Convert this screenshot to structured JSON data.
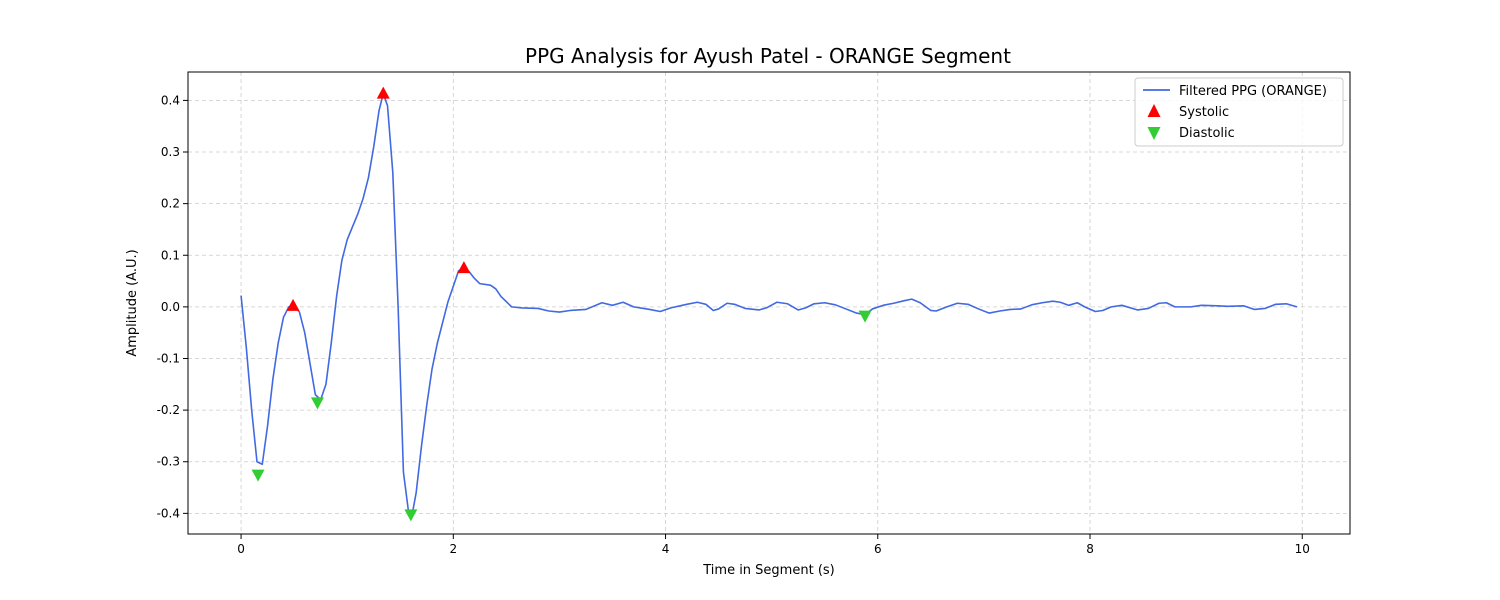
{
  "chart_data": {
    "type": "line",
    "title": "PPG Analysis for Ayush Patel - ORANGE Segment",
    "xlabel": "Time in Segment (s)",
    "ylabel": "Amplitude (A.U.)",
    "xlim": [
      -0.5,
      10.45
    ],
    "ylim": [
      -0.44,
      0.455
    ],
    "xticks": [
      0,
      2,
      4,
      6,
      8,
      10
    ],
    "yticks": [
      -0.4,
      -0.3,
      -0.2,
      -0.1,
      0.0,
      0.1,
      0.2,
      0.3,
      0.4
    ],
    "grid": true,
    "legend_position": "top-right",
    "colors": {
      "line": "#4169e1",
      "systolic": "#ff0000",
      "diastolic": "#32cd32",
      "grid": "#cccccc"
    },
    "series": [
      {
        "name": "Filtered PPG (ORANGE)",
        "kind": "line",
        "points": [
          [
            0.0,
            0.022
          ],
          [
            0.05,
            -0.08
          ],
          [
            0.1,
            -0.2
          ],
          [
            0.15,
            -0.3
          ],
          [
            0.2,
            -0.305
          ],
          [
            0.25,
            -0.23
          ],
          [
            0.3,
            -0.14
          ],
          [
            0.35,
            -0.07
          ],
          [
            0.4,
            -0.02
          ],
          [
            0.45,
            0.0
          ],
          [
            0.5,
            0.002
          ],
          [
            0.55,
            -0.01
          ],
          [
            0.6,
            -0.05
          ],
          [
            0.65,
            -0.11
          ],
          [
            0.7,
            -0.17
          ],
          [
            0.75,
            -0.18
          ],
          [
            0.8,
            -0.15
          ],
          [
            0.85,
            -0.07
          ],
          [
            0.9,
            0.02
          ],
          [
            0.95,
            0.09
          ],
          [
            1.0,
            0.13
          ],
          [
            1.05,
            0.155
          ],
          [
            1.1,
            0.18
          ],
          [
            1.15,
            0.21
          ],
          [
            1.2,
            0.25
          ],
          [
            1.25,
            0.31
          ],
          [
            1.3,
            0.38
          ],
          [
            1.34,
            0.413
          ],
          [
            1.38,
            0.39
          ],
          [
            1.43,
            0.26
          ],
          [
            1.48,
            0.0
          ],
          [
            1.53,
            -0.32
          ],
          [
            1.58,
            -0.4
          ],
          [
            1.61,
            -0.405
          ],
          [
            1.65,
            -0.36
          ],
          [
            1.7,
            -0.27
          ],
          [
            1.75,
            -0.19
          ],
          [
            1.8,
            -0.12
          ],
          [
            1.85,
            -0.07
          ],
          [
            1.9,
            -0.03
          ],
          [
            1.95,
            0.01
          ],
          [
            2.0,
            0.04
          ],
          [
            2.05,
            0.07
          ],
          [
            2.1,
            0.075
          ],
          [
            2.15,
            0.068
          ],
          [
            2.2,
            0.055
          ],
          [
            2.25,
            0.045
          ],
          [
            2.35,
            0.042
          ],
          [
            2.4,
            0.035
          ],
          [
            2.45,
            0.02
          ],
          [
            2.55,
            0.0
          ],
          [
            2.65,
            -0.002
          ],
          [
            2.8,
            -0.003
          ],
          [
            2.9,
            -0.008
          ],
          [
            3.0,
            -0.01
          ],
          [
            3.1,
            -0.007
          ],
          [
            3.25,
            -0.005
          ],
          [
            3.4,
            0.008
          ],
          [
            3.5,
            0.003
          ],
          [
            3.6,
            0.009
          ],
          [
            3.7,
            0.0
          ],
          [
            3.85,
            -0.005
          ],
          [
            3.95,
            -0.009
          ],
          [
            4.05,
            -0.002
          ],
          [
            4.2,
            0.005
          ],
          [
            4.3,
            0.009
          ],
          [
            4.38,
            0.005
          ],
          [
            4.45,
            -0.007
          ],
          [
            4.5,
            -0.004
          ],
          [
            4.58,
            0.007
          ],
          [
            4.65,
            0.005
          ],
          [
            4.75,
            -0.003
          ],
          [
            4.88,
            -0.006
          ],
          [
            4.95,
            -0.002
          ],
          [
            5.05,
            0.009
          ],
          [
            5.15,
            0.006
          ],
          [
            5.25,
            -0.006
          ],
          [
            5.32,
            -0.002
          ],
          [
            5.4,
            0.006
          ],
          [
            5.5,
            0.008
          ],
          [
            5.6,
            0.004
          ],
          [
            5.7,
            -0.004
          ],
          [
            5.8,
            -0.012
          ],
          [
            5.88,
            -0.015
          ],
          [
            5.95,
            -0.004
          ],
          [
            6.05,
            0.003
          ],
          [
            6.15,
            0.007
          ],
          [
            6.25,
            0.012
          ],
          [
            6.32,
            0.015
          ],
          [
            6.4,
            0.008
          ],
          [
            6.5,
            -0.007
          ],
          [
            6.55,
            -0.008
          ],
          [
            6.65,
            0.0
          ],
          [
            6.75,
            0.007
          ],
          [
            6.85,
            0.005
          ],
          [
            6.95,
            -0.004
          ],
          [
            7.05,
            -0.012
          ],
          [
            7.15,
            -0.008
          ],
          [
            7.25,
            -0.005
          ],
          [
            7.35,
            -0.004
          ],
          [
            7.45,
            0.004
          ],
          [
            7.55,
            0.008
          ],
          [
            7.65,
            0.011
          ],
          [
            7.72,
            0.009
          ],
          [
            7.8,
            0.003
          ],
          [
            7.88,
            0.008
          ],
          [
            7.95,
            0.0
          ],
          [
            8.05,
            -0.009
          ],
          [
            8.12,
            -0.007
          ],
          [
            8.2,
            0.0
          ],
          [
            8.3,
            0.003
          ],
          [
            8.45,
            -0.006
          ],
          [
            8.55,
            -0.003
          ],
          [
            8.65,
            0.007
          ],
          [
            8.72,
            0.008
          ],
          [
            8.8,
            0.0
          ],
          [
            8.95,
            0.0
          ],
          [
            9.05,
            0.003
          ],
          [
            9.2,
            0.002
          ],
          [
            9.3,
            0.001
          ],
          [
            9.45,
            0.002
          ],
          [
            9.55,
            -0.005
          ],
          [
            9.65,
            -0.003
          ],
          [
            9.75,
            0.005
          ],
          [
            9.85,
            0.006
          ],
          [
            9.95,
            0.0
          ]
        ]
      },
      {
        "name": "Systolic",
        "kind": "marker-up",
        "points": [
          [
            0.49,
            0.002
          ],
          [
            1.34,
            0.413
          ],
          [
            2.1,
            0.075
          ]
        ]
      },
      {
        "name": "Diastolic",
        "kind": "marker-down",
        "points": [
          [
            0.16,
            -0.325
          ],
          [
            0.72,
            -0.185
          ],
          [
            1.6,
            -0.402
          ],
          [
            5.88,
            -0.017
          ]
        ]
      }
    ]
  }
}
